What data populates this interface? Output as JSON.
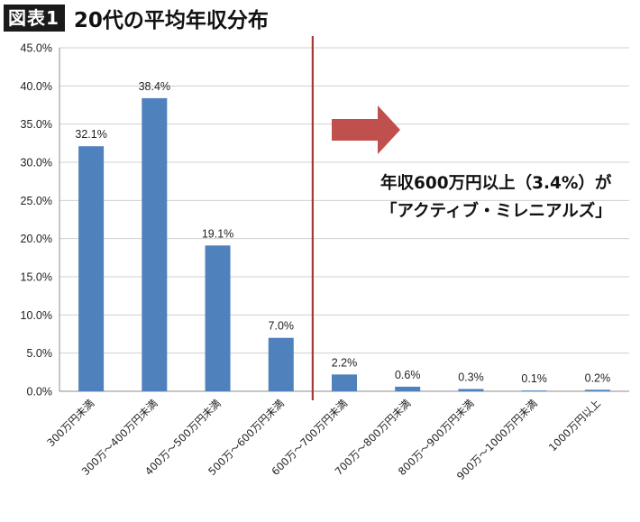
{
  "header": {
    "badge": "図表1",
    "title": "20代の平均年収分布"
  },
  "annotation": {
    "line1": "年収600万円以上（3.4%）が",
    "line2": "「アクティブ・ミレニアルズ」",
    "arrow_icon": "right-arrow-icon",
    "divider_after_category": "500万～600万円未満"
  },
  "colors": {
    "bar": "#4f81bd",
    "divider": "#a83a3a",
    "arrow": "#c0504d",
    "grid": "#d0d0d0"
  },
  "chart_data": {
    "type": "bar",
    "title": "20代の平均年収分布",
    "xlabel": "",
    "ylabel": "",
    "ylim": [
      0,
      45
    ],
    "yticks": [
      "0.0%",
      "5.0%",
      "10.0%",
      "15.0%",
      "20.0%",
      "25.0%",
      "30.0%",
      "35.0%",
      "40.0%",
      "45.0%"
    ],
    "categories": [
      "300万円未満",
      "300万～400万円未満",
      "400万～500万円未満",
      "500万～600万円未満",
      "600万～700万円未満",
      "700万～800万円未満",
      "800万～900万円未満",
      "900万～1000万円未満",
      "1000万円以上"
    ],
    "values": [
      32.1,
      38.4,
      19.1,
      7.0,
      2.2,
      0.6,
      0.3,
      0.1,
      0.2
    ],
    "value_labels": [
      "32.1%",
      "38.4%",
      "19.1%",
      "7.0%",
      "2.2%",
      "0.6%",
      "0.3%",
      "0.1%",
      "0.2%"
    ],
    "grid": true,
    "legend": "none"
  }
}
